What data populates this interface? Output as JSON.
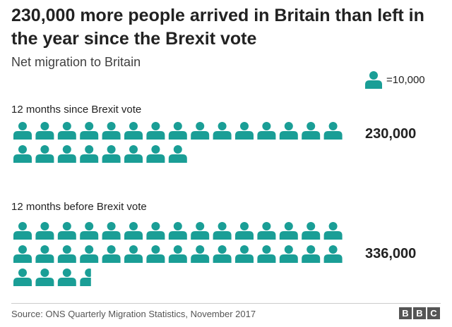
{
  "chart_data": {
    "type": "pictogram",
    "title": "230,000 more people arrived in Britain than left in the year since the Brexit vote",
    "subtitle": "Net migration to Britain",
    "legend": {
      "label": "=10,000",
      "unit_value": 10000,
      "placement": "top-right"
    },
    "categories": [
      "12 months since Brexit vote",
      "12 months before Brexit vote"
    ],
    "value_labels": [
      "230,000",
      "336,000"
    ],
    "values": [
      230000,
      336000
    ],
    "icon": "person-icon",
    "icon_color": "#1a9e96",
    "source": "Source: ONS Quarterly Migration Statistics, November 2017",
    "logo": [
      "B",
      "B",
      "C"
    ]
  }
}
